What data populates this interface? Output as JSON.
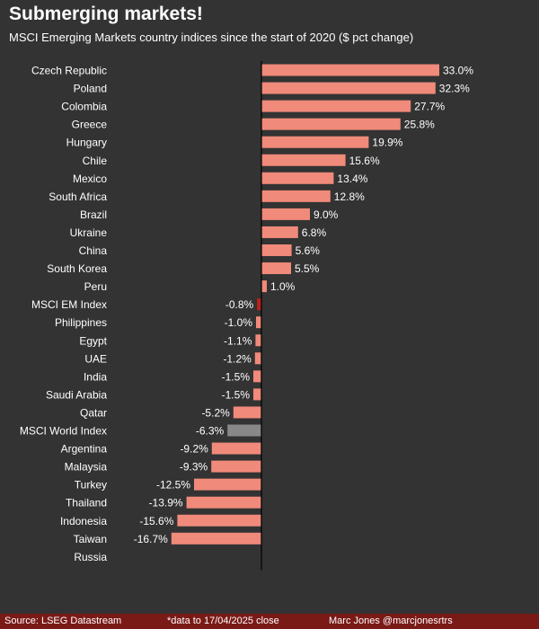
{
  "title": "Submerging markets!",
  "subtitle": "MSCI Emerging Markets country indices since the start of 2020 ($ pct change)",
  "footer": {
    "source": "Source: LSEG Datastream",
    "note": "*data to 17/04/2025 close",
    "author": "Marc Jones @marcjonesrtrs"
  },
  "colors": {
    "background": "#333333",
    "bar": "#f08a7a",
    "highlight_em": "#c0201a",
    "highlight_world": "#888888",
    "footer": "#7a1a17"
  },
  "chart_data": {
    "type": "bar",
    "orientation": "horizontal",
    "categories": [
      "Czech Republic",
      "Poland",
      "Colombia",
      "Greece",
      "Hungary",
      "Chile",
      "Mexico",
      "South Africa",
      "Brazil",
      "Ukraine",
      "China",
      "South Korea",
      "Peru",
      "MSCI EM Index",
      "Philippines",
      "Egypt",
      "UAE",
      "India",
      "Saudi Arabia",
      "Qatar",
      "MSCI World Index",
      "Argentina",
      "Malaysia",
      "Turkey",
      "Thailand",
      "Indonesia",
      "Taiwan",
      "Russia"
    ],
    "values": [
      33.0,
      32.3,
      27.7,
      25.8,
      19.9,
      15.6,
      13.4,
      12.8,
      9.0,
      6.8,
      5.6,
      5.5,
      1.0,
      -0.8,
      -1.0,
      -1.1,
      -1.2,
      -1.5,
      -1.5,
      -5.2,
      -6.3,
      -9.2,
      -9.3,
      -12.5,
      -13.9,
      -15.6,
      -16.7,
      null
    ],
    "labels": [
      "33.0%",
      "32.3%",
      "27.7%",
      "25.8%",
      "19.9%",
      "15.6%",
      "13.4%",
      "12.8%",
      "9.0%",
      "6.8%",
      "5.6%",
      "5.5%",
      "1.0%",
      "-0.8%",
      "-1.0%",
      "-1.1%",
      "-1.2%",
      "-1.5%",
      "-1.5%",
      "-5.2%",
      "-6.3%",
      "-9.2%",
      "-9.3%",
      "-12.5%",
      "-13.9%",
      "-15.6%",
      "-16.7%",
      ""
    ],
    "highlight": {
      "MSCI EM Index": "highlight_em",
      "MSCI World Index": "highlight_world"
    },
    "xlim": [
      -18,
      36
    ],
    "unit": "%"
  }
}
